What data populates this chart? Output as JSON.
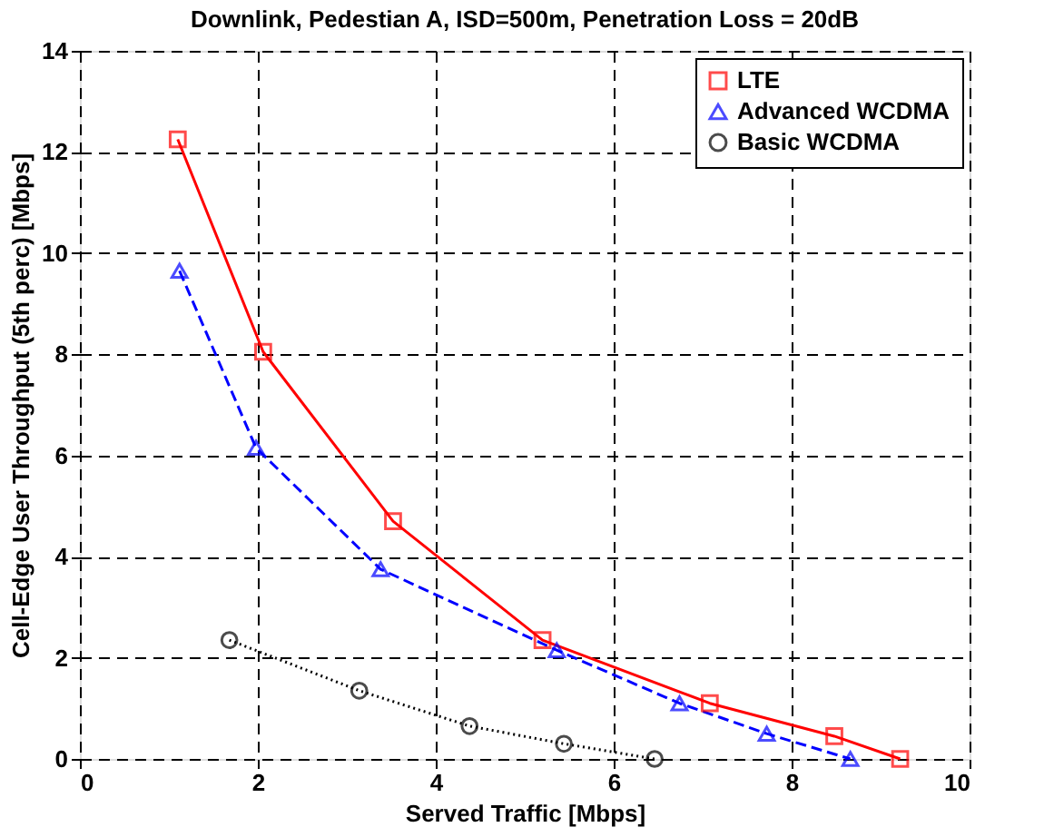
{
  "chart_data": {
    "type": "line",
    "title": "Downlink, Pedestian A, ISD=500m, Penetration Loss = 20dB",
    "xlabel": "Served Traffic [Mbps]",
    "ylabel": "Cell-Edge User Throughput (5th perc) [Mbps]",
    "xlim": [
      0,
      10
    ],
    "ylim": [
      0,
      14
    ],
    "xticks": [
      0,
      2,
      4,
      6,
      8,
      10
    ],
    "yticks": [
      0,
      2,
      4,
      6,
      8,
      10,
      12,
      14
    ],
    "grid": true,
    "legend": "top right",
    "series": [
      {
        "name": "LTE",
        "color": "#ff0000",
        "marker": "square",
        "line_style": "solid",
        "x": [
          1.1,
          2.06,
          3.52,
          5.2,
          7.08,
          8.48,
          9.22
        ],
        "values": [
          12.25,
          8.05,
          4.7,
          2.35,
          1.1,
          0.45,
          0
        ]
      },
      {
        "name": "Advanced WCDMA",
        "color": "#0000ff",
        "marker": "triangle",
        "line_style": "dashed",
        "x": [
          1.12,
          1.98,
          3.38,
          5.36,
          6.74,
          7.72,
          8.66
        ],
        "values": [
          9.65,
          6.15,
          3.75,
          2.15,
          1.1,
          0.5,
          0
        ]
      },
      {
        "name": "Basic WCDMA",
        "color": "#000000",
        "marker": "circle",
        "line_style": "dotted",
        "x": [
          1.68,
          3.14,
          4.38,
          5.44,
          6.46
        ],
        "values": [
          2.35,
          1.35,
          0.65,
          0.3,
          0
        ]
      }
    ]
  }
}
